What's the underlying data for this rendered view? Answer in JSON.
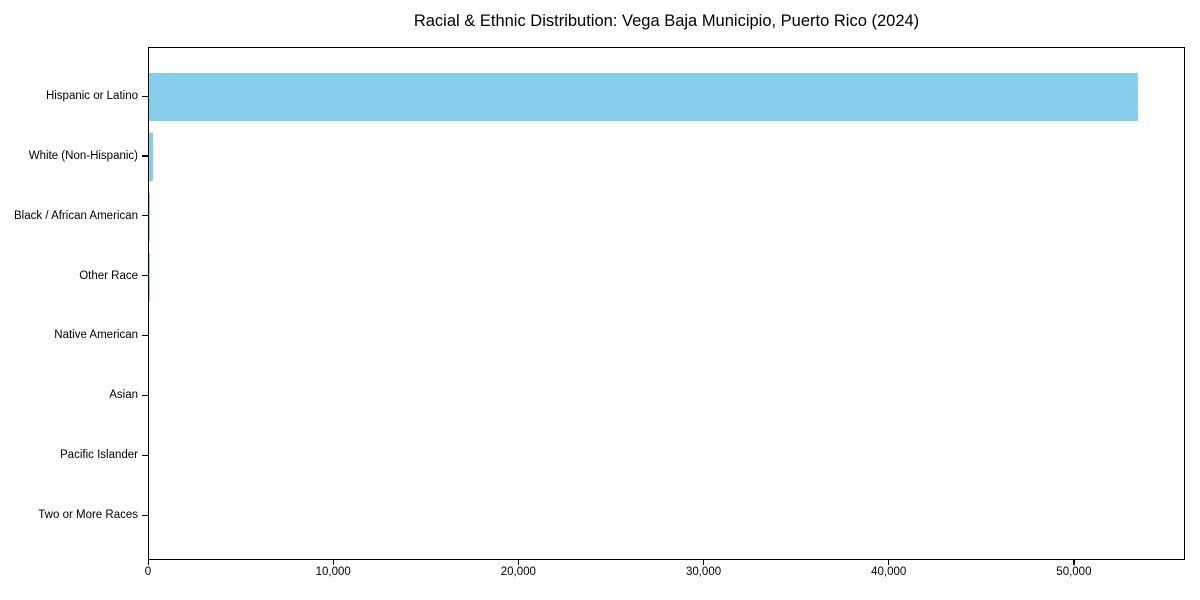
{
  "chart_data": {
    "type": "bar",
    "orientation": "horizontal",
    "title": "Racial & Ethnic Distribution: Vega Baja Municipio, Puerto Rico (2024)",
    "categories": [
      "Hispanic or Latino",
      "White (Non-Hispanic)",
      "Black / African American",
      "Other Race",
      "Native American",
      "Asian",
      "Pacific Islander",
      "Two or More Races"
    ],
    "values": [
      53400,
      230,
      60,
      50,
      0,
      0,
      0,
      0
    ],
    "xlabel": "",
    "ylabel": "",
    "xlim": [
      0,
      56000
    ],
    "xticks": {
      "values": [
        0,
        10000,
        20000,
        30000,
        40000,
        50000
      ],
      "labels": [
        "0",
        "10,000",
        "20,000",
        "30,000",
        "40,000",
        "50,000"
      ]
    },
    "bar_color": "#87CEEB",
    "background_color": "#ffffff",
    "grid": false,
    "legend_position": "none"
  }
}
